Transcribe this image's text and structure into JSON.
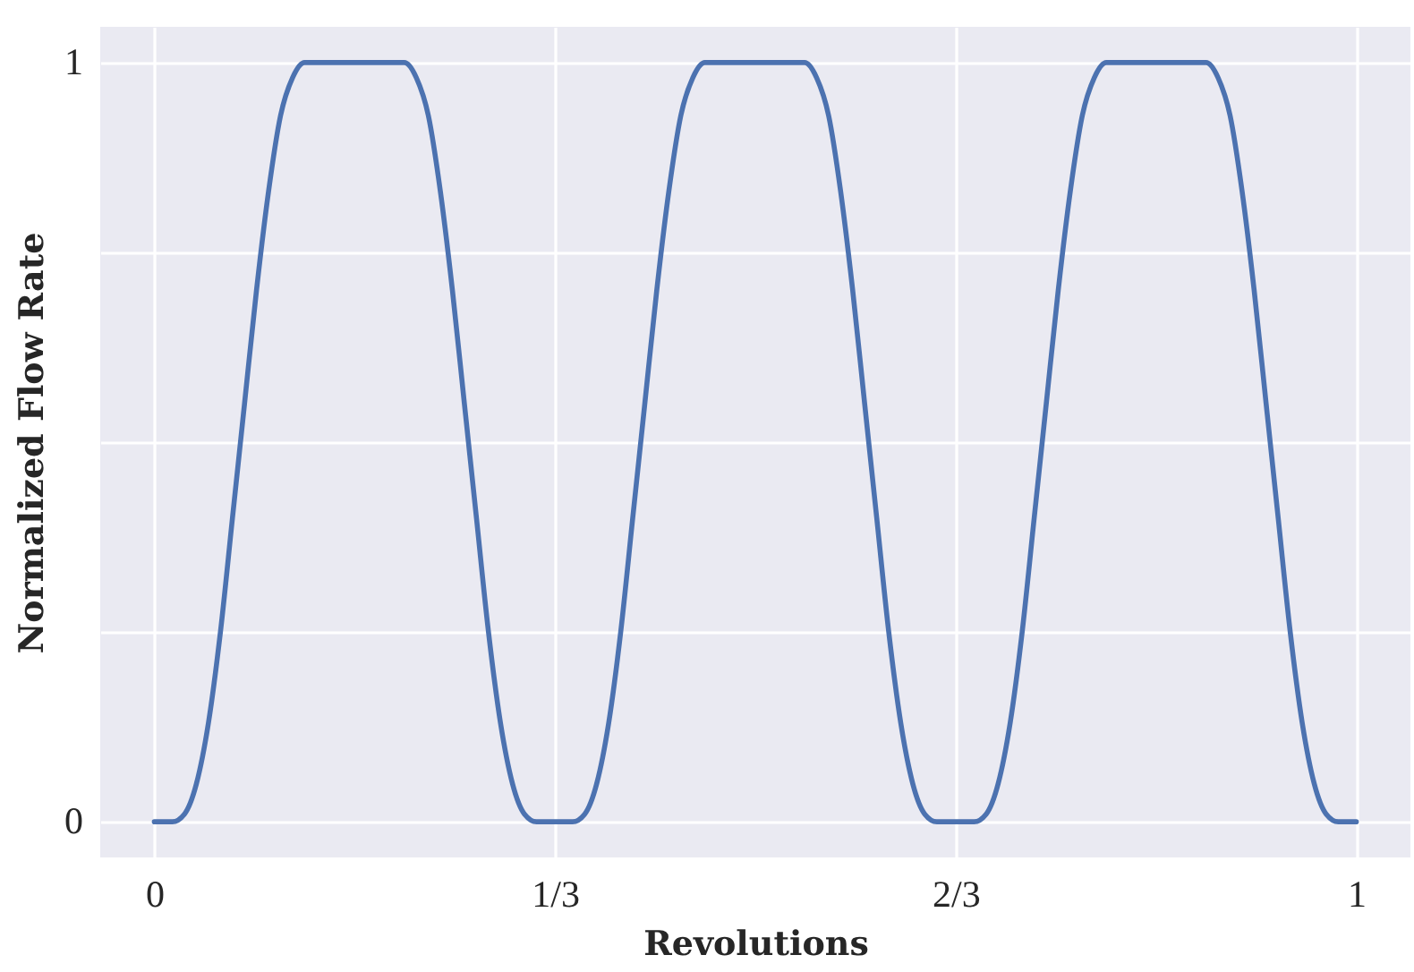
{
  "chart_data": {
    "type": "line",
    "xlabel": "Revolutions",
    "ylabel": "Normalized Flow Rate",
    "x": [
      0,
      0.015,
      0.025,
      0.035,
      0.045,
      0.055,
      0.065,
      0.075,
      0.085,
      0.095,
      0.105,
      0.115,
      0.125,
      0.135,
      0.167,
      0.198,
      0.208,
      0.218,
      0.228,
      0.238,
      0.248,
      0.258,
      0.268,
      0.278,
      0.288,
      0.298,
      0.308,
      0.318,
      0.333,
      0.348,
      0.358,
      0.368,
      0.378,
      0.388,
      0.398,
      0.408,
      0.418,
      0.428,
      0.438,
      0.448,
      0.458,
      0.468,
      0.5,
      0.531,
      0.541,
      0.551,
      0.561,
      0.571,
      0.581,
      0.591,
      0.601,
      0.611,
      0.621,
      0.631,
      0.641,
      0.651,
      0.667,
      0.682,
      0.692,
      0.702,
      0.712,
      0.722,
      0.732,
      0.742,
      0.752,
      0.762,
      0.772,
      0.782,
      0.792,
      0.802,
      0.834,
      0.865,
      0.875,
      0.885,
      0.895,
      0.905,
      0.915,
      0.925,
      0.935,
      0.945,
      0.955,
      0.965,
      0.975,
      0.985,
      1
    ],
    "series": [
      {
        "color": "#4c72b0",
        "values": [
          0,
          0,
          0.01,
          0.05,
          0.13,
          0.25,
          0.4,
          0.55,
          0.7,
          0.83,
          0.93,
          0.98,
          1,
          1,
          1,
          1,
          1,
          0.98,
          0.93,
          0.83,
          0.7,
          0.55,
          0.4,
          0.25,
          0.13,
          0.05,
          0.01,
          0,
          0,
          0,
          0.01,
          0.05,
          0.13,
          0.25,
          0.4,
          0.55,
          0.7,
          0.83,
          0.93,
          0.98,
          1,
          1,
          1,
          1,
          1,
          0.98,
          0.93,
          0.83,
          0.7,
          0.55,
          0.4,
          0.25,
          0.13,
          0.05,
          0.01,
          0,
          0,
          0,
          0.01,
          0.05,
          0.13,
          0.25,
          0.4,
          0.55,
          0.7,
          0.83,
          0.93,
          0.98,
          1,
          1,
          1,
          1,
          1,
          0.98,
          0.93,
          0.83,
          0.7,
          0.55,
          0.4,
          0.25,
          0.13,
          0.05,
          0.01,
          0,
          0
        ]
      }
    ],
    "xlim": [
      -0.045,
      1.045
    ],
    "ylim": [
      -0.047,
      1.047
    ],
    "xticks": [
      0,
      {
        "value": 0.3333,
        "label": "1/3"
      },
      {
        "value": 0.6667,
        "label": "2/3"
      },
      1
    ],
    "yticks": [
      0,
      {
        "value": 0.25,
        "label": null
      },
      {
        "value": 0.5,
        "label": null
      },
      {
        "value": 0.75,
        "label": null
      },
      1
    ],
    "grid": true,
    "marker": "none",
    "line_style": "solid"
  }
}
